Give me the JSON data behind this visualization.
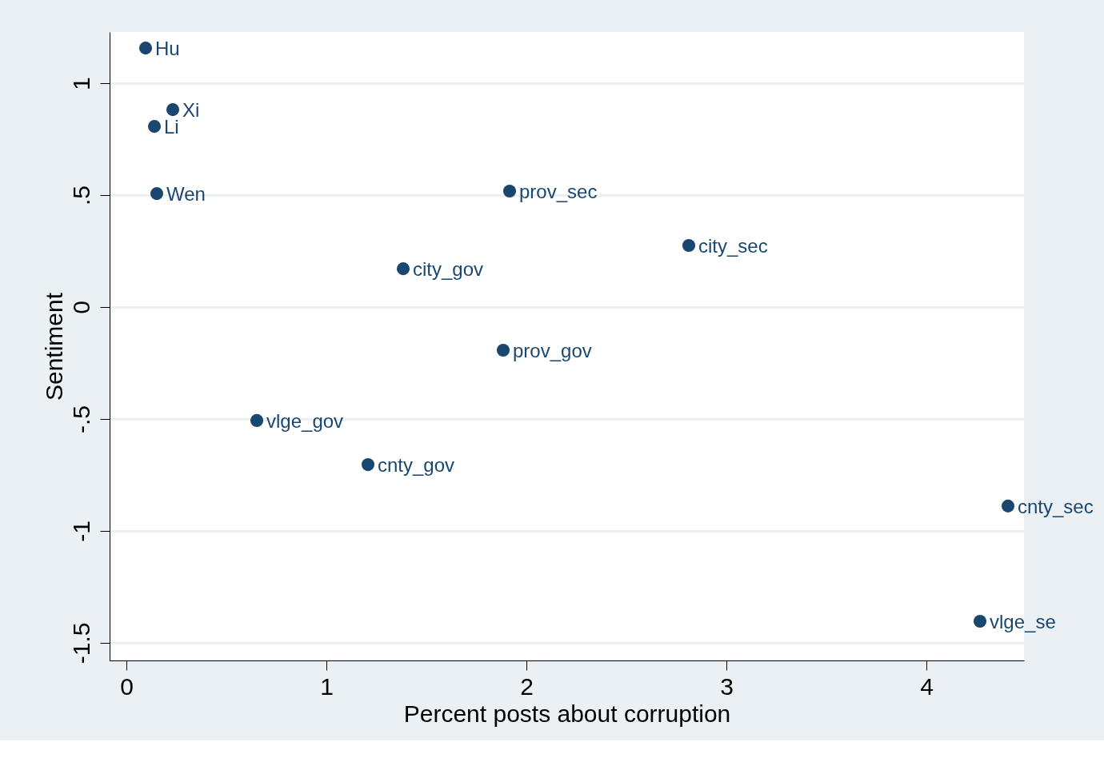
{
  "chart_data": {
    "type": "scatter",
    "xlabel": "Percent posts about corruption",
    "ylabel": "Sentiment",
    "x": [
      0.096,
      0.232,
      0.14,
      0.152,
      1.916,
      2.812,
      1.384,
      1.884,
      0.652,
      1.208,
      4.408,
      4.268
    ],
    "series": [
      {
        "color": "#1a476f",
        "values": [
          1.157,
          0.882,
          0.807,
          0.507,
          0.518,
          0.275,
          0.171,
          -0.193,
          -0.507,
          -0.704,
          -0.889,
          -1.404
        ]
      }
    ],
    "annotations": [
      {
        "text": "Hu",
        "x": 0.096,
        "y": 1.157
      },
      {
        "text": "Xi",
        "x": 0.232,
        "y": 0.882
      },
      {
        "text": "Li",
        "x": 0.14,
        "y": 0.807
      },
      {
        "text": "Wen",
        "x": 0.152,
        "y": 0.507
      },
      {
        "text": "prov_sec",
        "x": 1.916,
        "y": 0.518
      },
      {
        "text": "city_sec",
        "x": 2.812,
        "y": 0.275
      },
      {
        "text": "city_gov",
        "x": 1.384,
        "y": 0.171
      },
      {
        "text": "prov_gov",
        "x": 1.884,
        "y": -0.193
      },
      {
        "text": "vlge_gov",
        "x": 0.652,
        "y": -0.507
      },
      {
        "text": "cnty_gov",
        "x": 1.208,
        "y": -0.704
      },
      {
        "text": "cnty_sec",
        "x": 4.408,
        "y": -0.889
      },
      {
        "text": "vlge_se",
        "x": 4.268,
        "y": -1.404
      }
    ],
    "xlim": [
      -0.084,
      4.488
    ],
    "xticks": [
      0,
      1,
      2,
      3,
      4
    ],
    "ylim": [
      -1.579,
      1.229
    ],
    "yticks": [
      {
        "value": -1.5,
        "label": "-1.5"
      },
      {
        "value": -1,
        "label": "-1"
      },
      {
        "value": -0.5,
        "label": "-.5"
      },
      {
        "value": 0,
        "label": "0"
      },
      {
        "value": 0.5,
        "label": ".5"
      },
      {
        "value": 1,
        "label": "1"
      }
    ],
    "grid": "y",
    "marker": "circle"
  }
}
